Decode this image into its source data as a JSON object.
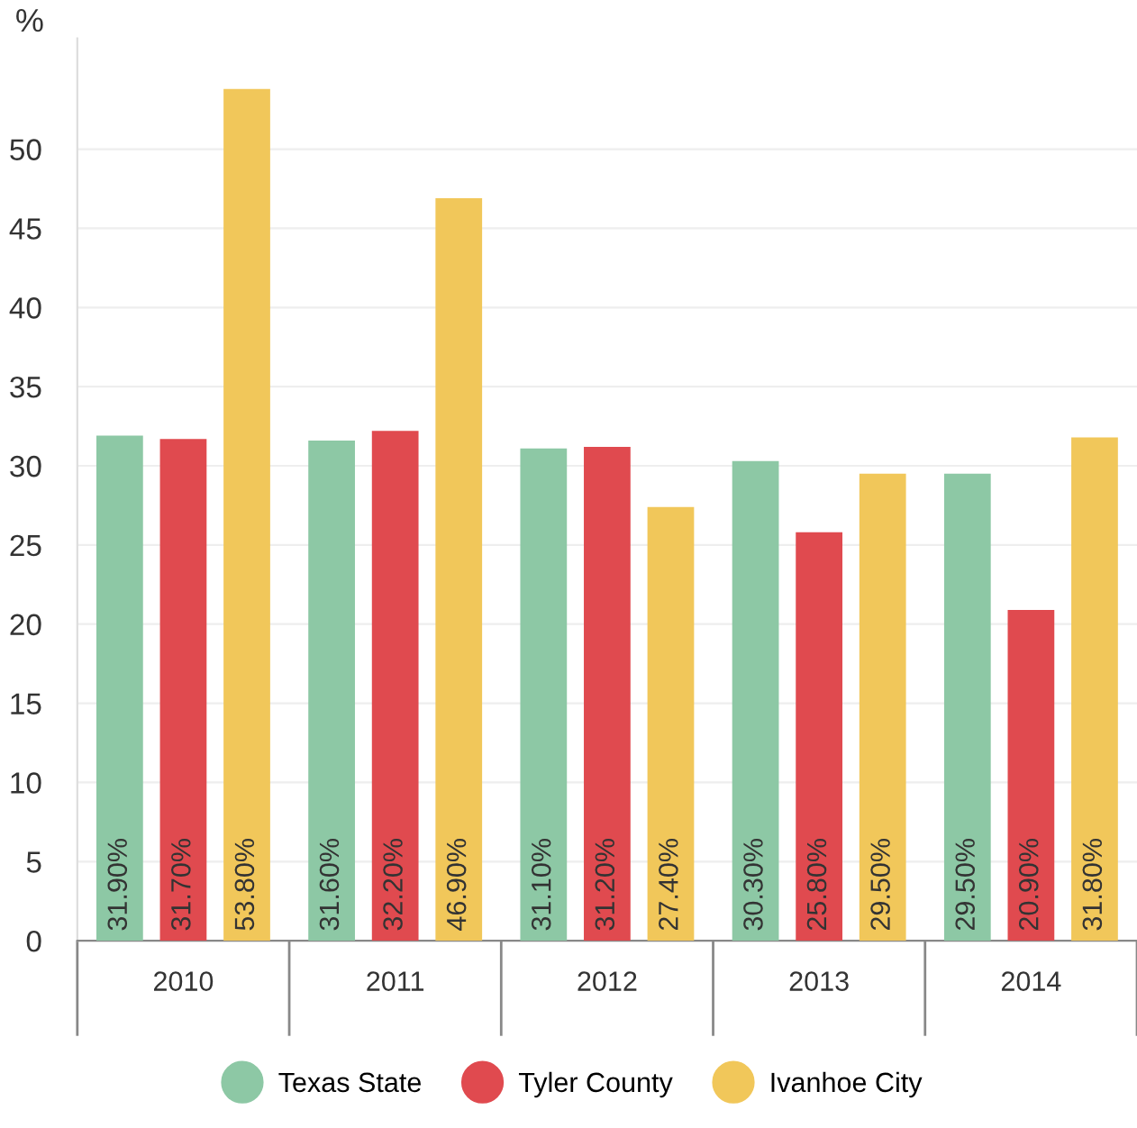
{
  "chart_data": {
    "type": "bar",
    "ylabel": "%",
    "categories": [
      "2010",
      "2011",
      "2012",
      "2013",
      "2014"
    ],
    "series": [
      {
        "name": "Texas State",
        "color": "#8dc8a5",
        "values": [
          31.9,
          31.6,
          31.1,
          30.3,
          29.5
        ],
        "value_labels": [
          "31.90%",
          "31.60%",
          "31.10%",
          "30.30%",
          "29.50%"
        ]
      },
      {
        "name": "Tyler County",
        "color": "#e04a4f",
        "values": [
          31.7,
          32.2,
          31.2,
          25.8,
          20.9
        ],
        "value_labels": [
          "31.70%",
          "32.20%",
          "31.20%",
          "25.80%",
          "20.90%"
        ]
      },
      {
        "name": "Ivanhoe City",
        "color": "#f1c75a",
        "values": [
          53.8,
          46.9,
          27.4,
          29.5,
          31.8
        ],
        "value_labels": [
          "53.80%",
          "46.90%",
          "27.40%",
          "29.50%",
          "31.80%"
        ]
      }
    ],
    "ylim": [
      0,
      57
    ],
    "yticks": [
      0,
      5,
      10,
      15,
      20,
      25,
      30,
      35,
      40,
      45,
      50
    ],
    "grid": "y",
    "legend": "bottom"
  }
}
